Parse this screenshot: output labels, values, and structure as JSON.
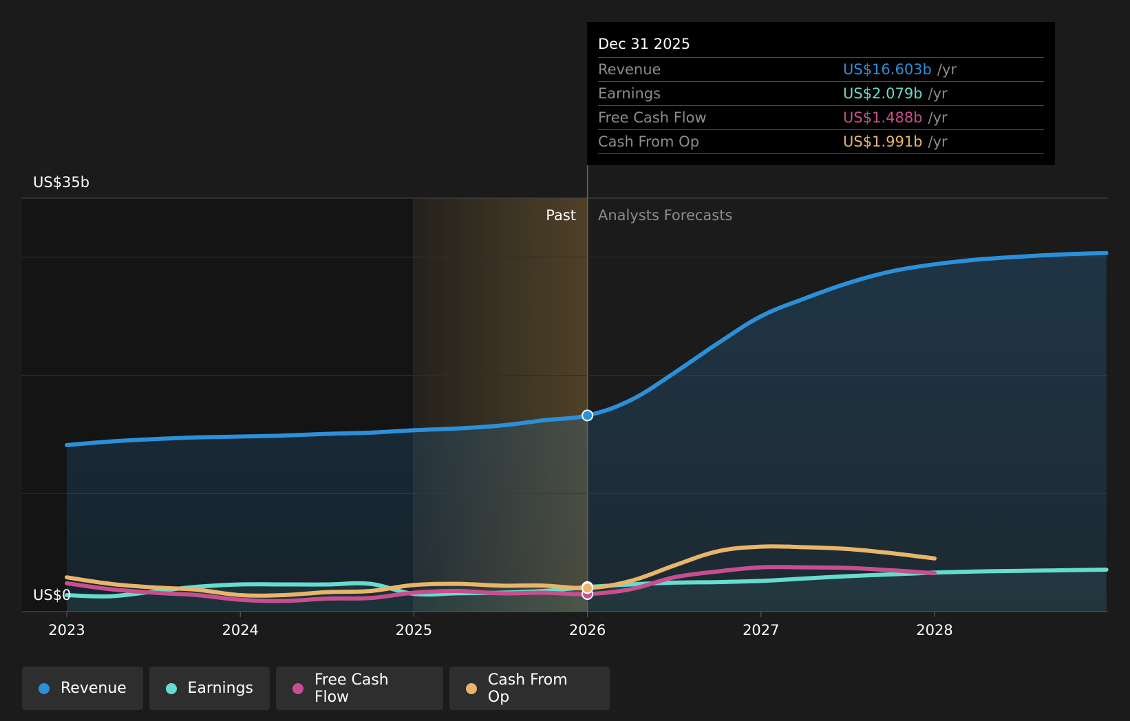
{
  "chart_data": {
    "type": "line",
    "y_axis": {
      "top_label": "US$35b",
      "bottom_label": "US$0",
      "ylim": [
        0,
        35
      ]
    },
    "x_ticks": [
      "2023",
      "2024",
      "2025",
      "2026",
      "2027",
      "2028"
    ],
    "xlim": [
      2022.75,
      2028.99
    ],
    "past_label": "Past",
    "forecast_label": "Analysts Forecasts",
    "divider_x": 2026.0,
    "highlight_range": [
      2025.0,
      2026.0
    ],
    "series": [
      {
        "name": "Revenue",
        "color": "#2b90d9",
        "points": [
          [
            2023.0,
            14.1
          ],
          [
            2023.25,
            14.4
          ],
          [
            2023.5,
            14.6
          ],
          [
            2023.75,
            14.75
          ],
          [
            2024.0,
            14.82
          ],
          [
            2024.25,
            14.9
          ],
          [
            2024.5,
            15.05
          ],
          [
            2024.75,
            15.15
          ],
          [
            2025.0,
            15.35
          ],
          [
            2025.25,
            15.5
          ],
          [
            2025.5,
            15.75
          ],
          [
            2025.75,
            16.2
          ],
          [
            2026.0,
            16.603
          ],
          [
            2026.25,
            17.9
          ],
          [
            2026.5,
            20.2
          ],
          [
            2026.75,
            22.7
          ],
          [
            2027.0,
            25.0
          ],
          [
            2027.25,
            26.5
          ],
          [
            2027.5,
            27.8
          ],
          [
            2027.75,
            28.8
          ],
          [
            2028.0,
            29.4
          ],
          [
            2028.25,
            29.8
          ],
          [
            2028.5,
            30.05
          ],
          [
            2028.75,
            30.25
          ],
          [
            2028.99,
            30.35
          ]
        ]
      },
      {
        "name": "Earnings",
        "color": "#66dccf",
        "points": [
          [
            2023.0,
            1.4
          ],
          [
            2023.25,
            1.3
          ],
          [
            2023.5,
            1.7
          ],
          [
            2023.75,
            2.1
          ],
          [
            2024.0,
            2.3
          ],
          [
            2024.25,
            2.3
          ],
          [
            2024.5,
            2.3
          ],
          [
            2024.75,
            2.35
          ],
          [
            2025.0,
            1.5
          ],
          [
            2025.25,
            1.55
          ],
          [
            2025.5,
            1.6
          ],
          [
            2025.75,
            1.75
          ],
          [
            2026.0,
            2.079
          ],
          [
            2026.25,
            2.3
          ],
          [
            2026.5,
            2.45
          ],
          [
            2026.75,
            2.5
          ],
          [
            2027.0,
            2.6
          ],
          [
            2027.25,
            2.8
          ],
          [
            2027.5,
            3.0
          ],
          [
            2027.75,
            3.15
          ],
          [
            2028.0,
            3.3
          ],
          [
            2028.25,
            3.4
          ],
          [
            2028.5,
            3.45
          ],
          [
            2028.75,
            3.5
          ],
          [
            2028.99,
            3.55
          ]
        ]
      },
      {
        "name": "Free Cash Flow",
        "color": "#c84f8f",
        "points": [
          [
            2023.0,
            2.4
          ],
          [
            2023.25,
            1.9
          ],
          [
            2023.5,
            1.6
          ],
          [
            2023.75,
            1.4
          ],
          [
            2024.0,
            1.0
          ],
          [
            2024.25,
            0.9
          ],
          [
            2024.5,
            1.1
          ],
          [
            2024.75,
            1.15
          ],
          [
            2025.0,
            1.6
          ],
          [
            2025.25,
            1.75
          ],
          [
            2025.5,
            1.55
          ],
          [
            2025.75,
            1.6
          ],
          [
            2026.0,
            1.488
          ],
          [
            2026.25,
            1.9
          ],
          [
            2026.5,
            2.9
          ],
          [
            2026.75,
            3.4
          ],
          [
            2027.0,
            3.75
          ],
          [
            2027.25,
            3.75
          ],
          [
            2027.5,
            3.7
          ],
          [
            2027.75,
            3.5
          ],
          [
            2028.0,
            3.25
          ]
        ]
      },
      {
        "name": "Cash From Op",
        "color": "#e8b56a",
        "points": [
          [
            2023.0,
            2.9
          ],
          [
            2023.25,
            2.35
          ],
          [
            2023.5,
            2.05
          ],
          [
            2023.75,
            1.85
          ],
          [
            2024.0,
            1.4
          ],
          [
            2024.25,
            1.4
          ],
          [
            2024.5,
            1.65
          ],
          [
            2024.75,
            1.75
          ],
          [
            2025.0,
            2.25
          ],
          [
            2025.25,
            2.35
          ],
          [
            2025.5,
            2.2
          ],
          [
            2025.75,
            2.2
          ],
          [
            2026.0,
            1.991
          ],
          [
            2026.25,
            2.6
          ],
          [
            2026.5,
            3.9
          ],
          [
            2026.75,
            5.1
          ],
          [
            2027.0,
            5.5
          ],
          [
            2027.25,
            5.45
          ],
          [
            2027.5,
            5.3
          ],
          [
            2027.75,
            4.95
          ],
          [
            2028.0,
            4.5
          ]
        ]
      }
    ]
  },
  "tooltip": {
    "date": "Dec 31 2025",
    "unit": "/yr",
    "rows": [
      {
        "label": "Revenue",
        "value": "US$16.603b",
        "color": "#2b90d9"
      },
      {
        "label": "Earnings",
        "value": "US$2.079b",
        "color": "#66dccf"
      },
      {
        "label": "Free Cash Flow",
        "value": "US$1.488b",
        "color": "#c84f8f"
      },
      {
        "label": "Cash From Op",
        "value": "US$1.991b",
        "color": "#e8b56a"
      }
    ]
  },
  "legend": [
    {
      "label": "Revenue",
      "color": "#2b90d9"
    },
    {
      "label": "Earnings",
      "color": "#66dccf"
    },
    {
      "label": "Free Cash Flow",
      "color": "#c84f8f"
    },
    {
      "label": "Cash From Op",
      "color": "#e8b56a"
    }
  ]
}
